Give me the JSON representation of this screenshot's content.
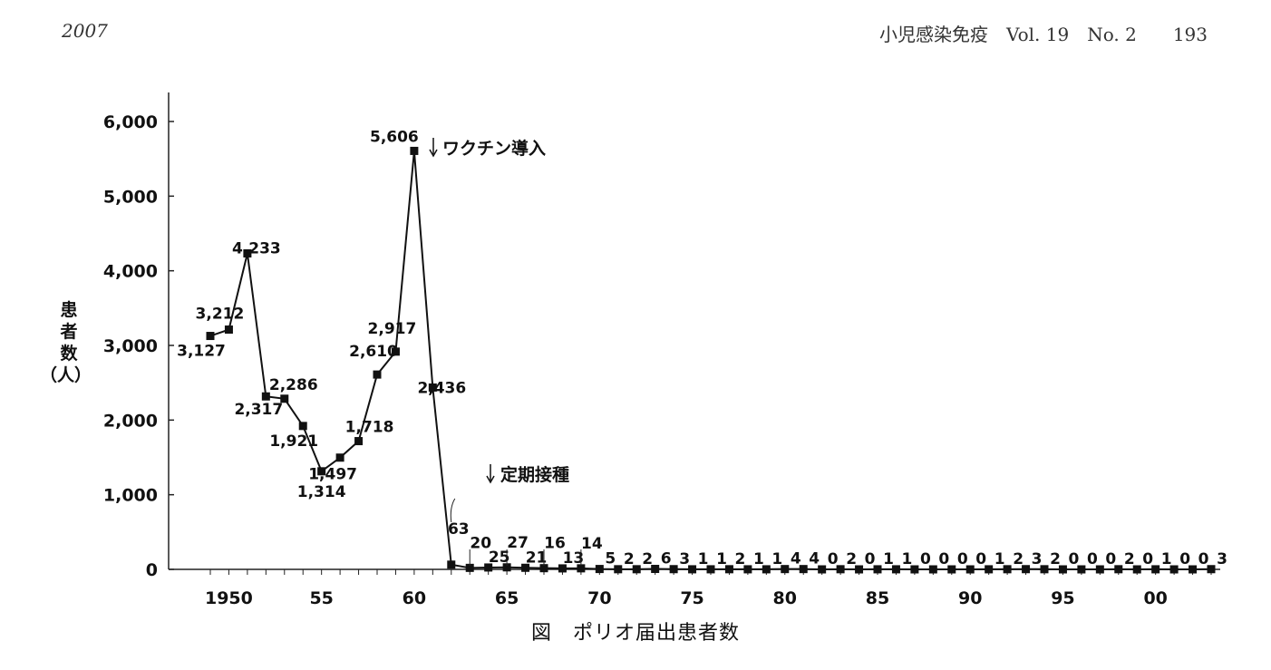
{
  "header": {
    "year": "2007",
    "journal": "小児感染免疫　Vol. 19　No. 2　　193"
  },
  "caption": "図　ポリオ届出患者数",
  "chart_data": {
    "type": "line",
    "title": "",
    "ylabel_lines": [
      "患",
      "者",
      "数",
      "（人）"
    ],
    "ylim": [
      0,
      6000
    ],
    "yticks": [
      0,
      1000,
      2000,
      3000,
      4000,
      5000,
      6000
    ],
    "ytick_labels": [
      "0",
      "1,000",
      "2,000",
      "3,000",
      "4,000",
      "5,000",
      "6,000"
    ],
    "xticks": [
      1950,
      1955,
      1960,
      1965,
      1970,
      1975,
      1980,
      1985,
      1990,
      1995,
      2000
    ],
    "xtick_labels": [
      "1950",
      "55",
      "60",
      "65",
      "70",
      "75",
      "80",
      "85",
      "90",
      "95",
      "00"
    ],
    "x": [
      1949,
      1950,
      1951,
      1952,
      1953,
      1954,
      1955,
      1956,
      1957,
      1958,
      1959,
      1960,
      1961,
      1962,
      1963,
      1964,
      1965,
      1966,
      1967,
      1968,
      1969,
      1970,
      1971,
      1972,
      1973,
      1974,
      1975,
      1976,
      1977,
      1978,
      1979,
      1980,
      1981,
      1982,
      1983,
      1984,
      1985,
      1986,
      1987,
      1988,
      1989,
      1990,
      1991,
      1992,
      1993,
      1994,
      1995,
      1996,
      1997,
      1998,
      1999,
      2000,
      2001,
      2002,
      2003
    ],
    "values": [
      3127,
      3212,
      4233,
      2317,
      2286,
      1921,
      1314,
      1497,
      1718,
      2610,
      2917,
      5606,
      2436,
      63,
      20,
      25,
      27,
      21,
      16,
      13,
      14,
      5,
      2,
      2,
      6,
      3,
      1,
      1,
      2,
      1,
      1,
      4,
      4,
      0,
      2,
      0,
      1,
      1,
      0,
      0,
      0,
      0,
      1,
      2,
      3,
      2,
      0,
      0,
      0,
      2,
      0,
      1,
      0,
      0,
      3
    ],
    "data_labels": [
      "3,127",
      "3,212",
      "4,233",
      "2,317",
      "2,286",
      "1,921",
      "1,314",
      "1,497",
      "1,718",
      "2,610",
      "2,917",
      "5,606",
      "2,436",
      "63",
      "20",
      "25",
      "27",
      "21",
      "16",
      "13",
      "14",
      "5",
      "2",
      "2",
      "6",
      "3",
      "1",
      "1",
      "2",
      "1",
      "1",
      "4",
      "4",
      "0",
      "2",
      "0",
      "1",
      "1",
      "0",
      "0",
      "0",
      "0",
      "1",
      "2",
      "3",
      "2",
      "0",
      "0",
      "0",
      "2",
      "0",
      "1",
      "0",
      "0",
      "3"
    ],
    "annotations": [
      {
        "x": 1961,
        "text": "ワクチン導入"
      },
      {
        "x": 1964,
        "text": "定期接種"
      }
    ],
    "grid": false
  }
}
